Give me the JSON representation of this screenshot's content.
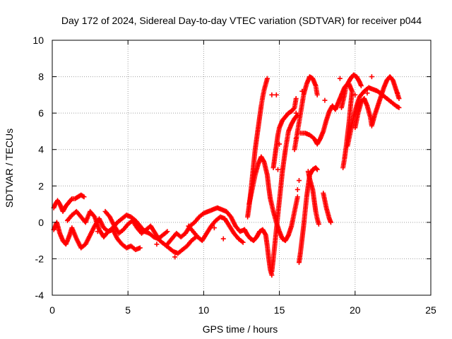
{
  "chart_data": {
    "type": "scatter",
    "title": "Day 172 of 2024, Sidereal Day-to-day VTEC variation (SDTVAR) for receiver p044",
    "xlabel": "GPS time / hours",
    "ylabel": "SDTVAR / TECUs",
    "xlim": [
      0,
      25
    ],
    "ylim": [
      -4,
      10
    ],
    "xticks": [
      "0",
      "5",
      "10",
      "15",
      "20",
      "25"
    ],
    "yticks": [
      "-4",
      "-2",
      "0",
      "2",
      "4",
      "6",
      "8",
      "10"
    ],
    "grid": true,
    "marker": "+",
    "colors": {
      "series": "#ff0000",
      "grid": "#a0a0a0",
      "axis": "#000000"
    },
    "series": [
      {
        "name": "s1",
        "values": [
          [
            0.1,
            -0.4
          ],
          [
            0.3,
            0.0
          ],
          [
            0.5,
            -0.6
          ],
          [
            0.7,
            -1.0
          ],
          [
            0.9,
            -1.2
          ],
          [
            1.1,
            -0.8
          ],
          [
            1.3,
            -0.3
          ],
          [
            1.6,
            -0.9
          ],
          [
            1.9,
            -1.4
          ],
          [
            2.2,
            -1.2
          ],
          [
            2.5,
            -0.7
          ],
          [
            2.8,
            -0.2
          ],
          [
            3.1,
            0.2
          ],
          [
            3.4,
            -0.3
          ],
          [
            3.7,
            -0.5
          ],
          [
            4.0,
            -0.4
          ],
          [
            4.3,
            -0.9
          ],
          [
            4.6,
            -1.2
          ],
          [
            4.9,
            -1.4
          ],
          [
            5.2,
            -1.3
          ],
          [
            5.5,
            -1.5
          ],
          [
            5.8,
            -1.4
          ]
        ]
      },
      {
        "name": "s2",
        "values": [
          [
            0.1,
            0.8
          ],
          [
            0.2,
            1.0
          ],
          [
            0.35,
            1.2
          ],
          [
            0.5,
            1.0
          ],
          [
            0.7,
            0.6
          ],
          [
            0.9,
            0.9
          ],
          [
            1.1,
            1.1
          ],
          [
            1.3,
            1.3
          ],
          [
            1.5,
            1.3
          ],
          [
            1.7,
            1.4
          ],
          [
            1.9,
            1.5
          ],
          [
            2.1,
            1.4
          ]
        ]
      },
      {
        "name": "s3",
        "values": [
          [
            1.0,
            0.1
          ],
          [
            1.3,
            0.4
          ],
          [
            1.6,
            0.6
          ],
          [
            1.9,
            0.3
          ],
          [
            2.2,
            0.0
          ],
          [
            2.5,
            0.6
          ],
          [
            2.8,
            0.3
          ],
          [
            3.1,
            -0.4
          ],
          [
            3.4,
            -0.8
          ],
          [
            3.7,
            -0.5
          ],
          [
            4.0,
            -0.3
          ],
          [
            4.3,
            0.0
          ],
          [
            4.6,
            0.2
          ],
          [
            4.9,
            0.4
          ],
          [
            5.2,
            0.3
          ],
          [
            5.5,
            0.1
          ],
          [
            5.8,
            -0.2
          ],
          [
            6.1,
            -0.5
          ],
          [
            6.4,
            -0.6
          ],
          [
            6.7,
            -0.8
          ],
          [
            7.0,
            -0.9
          ],
          [
            7.3,
            -0.7
          ],
          [
            7.6,
            -0.5
          ]
        ]
      },
      {
        "name": "s4",
        "values": [
          [
            3.5,
            0.6
          ],
          [
            3.8,
            0.3
          ],
          [
            4.1,
            -0.2
          ],
          [
            4.4,
            -0.6
          ],
          [
            4.7,
            -0.4
          ],
          [
            5.0,
            -0.1
          ],
          [
            5.3,
            0.1
          ],
          [
            5.6,
            -0.3
          ],
          [
            5.9,
            -0.6
          ],
          [
            6.2,
            -0.4
          ],
          [
            6.5,
            -0.2
          ],
          [
            6.8,
            -0.6
          ],
          [
            7.1,
            -1.0
          ],
          [
            7.4,
            -1.2
          ],
          [
            7.7,
            -1.4
          ],
          [
            8.0,
            -1.6
          ],
          [
            8.3,
            -1.7
          ],
          [
            8.6,
            -1.5
          ],
          [
            8.9,
            -1.3
          ],
          [
            9.2,
            -1.0
          ],
          [
            9.5,
            -0.8
          ]
        ]
      },
      {
        "name": "s5",
        "values": [
          [
            7.6,
            -1.2
          ],
          [
            7.9,
            -0.9
          ],
          [
            8.2,
            -0.6
          ],
          [
            8.5,
            -0.8
          ],
          [
            8.8,
            -0.6
          ],
          [
            9.1,
            -0.2
          ],
          [
            9.4,
            0.0
          ],
          [
            9.7,
            0.3
          ],
          [
            10.0,
            0.5
          ],
          [
            10.3,
            0.6
          ],
          [
            10.6,
            0.7
          ],
          [
            10.9,
            0.8
          ],
          [
            11.2,
            0.7
          ],
          [
            11.5,
            0.6
          ],
          [
            11.8,
            0.3
          ],
          [
            12.1,
            -0.2
          ],
          [
            12.4,
            -0.5
          ],
          [
            12.7,
            -0.4
          ]
        ]
      },
      {
        "name": "s6",
        "values": [
          [
            9.0,
            -0.2
          ],
          [
            9.3,
            -0.5
          ],
          [
            9.6,
            -0.8
          ],
          [
            9.9,
            -1.0
          ],
          [
            10.2,
            -0.6
          ],
          [
            10.5,
            -0.2
          ],
          [
            10.8,
            0.1
          ],
          [
            11.1,
            0.3
          ],
          [
            11.4,
            0.2
          ],
          [
            11.7,
            -0.2
          ],
          [
            12.0,
            -0.6
          ],
          [
            12.3,
            -0.9
          ],
          [
            12.6,
            -1.1
          ]
        ]
      },
      {
        "name": "s7",
        "values": [
          [
            12.9,
            0.3
          ],
          [
            13.0,
            0.9
          ],
          [
            13.1,
            1.6
          ],
          [
            13.2,
            2.4
          ],
          [
            13.3,
            3.2
          ],
          [
            13.4,
            4.0
          ],
          [
            13.5,
            4.6
          ],
          [
            13.6,
            5.2
          ],
          [
            13.7,
            5.8
          ],
          [
            13.8,
            6.4
          ],
          [
            13.9,
            6.9
          ],
          [
            14.0,
            7.3
          ],
          [
            14.1,
            7.6
          ],
          [
            14.2,
            7.9
          ]
        ]
      },
      {
        "name": "s8",
        "values": [
          [
            13.0,
            1.0
          ],
          [
            13.2,
            1.8
          ],
          [
            13.4,
            2.6
          ],
          [
            13.6,
            3.2
          ],
          [
            13.8,
            3.6
          ],
          [
            14.0,
            3.3
          ],
          [
            14.2,
            2.6
          ],
          [
            14.3,
            1.9
          ],
          [
            14.4,
            1.3
          ],
          [
            14.6,
            0.6
          ],
          [
            14.8,
            0.0
          ],
          [
            15.0,
            -0.5
          ],
          [
            15.2,
            -0.9
          ],
          [
            15.4,
            -1.0
          ],
          [
            15.6,
            -0.7
          ],
          [
            15.8,
            -0.2
          ],
          [
            16.0,
            0.6
          ],
          [
            16.2,
            1.4
          ]
        ]
      },
      {
        "name": "s9",
        "values": [
          [
            14.6,
            3.0
          ],
          [
            14.7,
            3.6
          ],
          [
            14.8,
            4.2
          ],
          [
            14.9,
            4.8
          ],
          [
            15.0,
            5.2
          ],
          [
            15.2,
            5.6
          ],
          [
            15.4,
            5.8
          ],
          [
            15.6,
            6.0
          ],
          [
            15.8,
            6.1
          ],
          [
            16.0,
            6.3
          ],
          [
            16.1,
            6.8
          ]
        ]
      },
      {
        "name": "s10",
        "values": [
          [
            12.7,
            -0.4
          ],
          [
            12.9,
            -0.7
          ],
          [
            13.1,
            -0.9
          ],
          [
            13.3,
            -1.0
          ],
          [
            13.5,
            -0.8
          ],
          [
            13.7,
            -0.5
          ],
          [
            13.9,
            -0.4
          ],
          [
            14.1,
            -0.7
          ],
          [
            14.2,
            -1.3
          ],
          [
            14.3,
            -2.0
          ],
          [
            14.4,
            -2.6
          ],
          [
            14.5,
            -2.9
          ]
        ]
      },
      {
        "name": "s11",
        "values": [
          [
            14.5,
            -2.7
          ],
          [
            14.6,
            -2.0
          ],
          [
            14.7,
            -1.2
          ],
          [
            14.8,
            -0.4
          ],
          [
            14.9,
            0.4
          ],
          [
            15.0,
            1.2
          ],
          [
            15.1,
            2.0
          ],
          [
            15.2,
            2.8
          ],
          [
            15.3,
            3.4
          ],
          [
            15.4,
            4.0
          ],
          [
            15.5,
            4.5
          ],
          [
            15.6,
            5.0
          ],
          [
            15.8,
            5.4
          ],
          [
            16.0,
            5.7
          ],
          [
            16.2,
            5.9
          ]
        ]
      },
      {
        "name": "s12",
        "values": [
          [
            16.0,
            4.0
          ],
          [
            16.2,
            5.0
          ],
          [
            16.4,
            6.0
          ],
          [
            16.6,
            7.0
          ],
          [
            16.8,
            7.6
          ],
          [
            17.0,
            8.0
          ],
          [
            17.2,
            7.9
          ],
          [
            17.4,
            7.5
          ],
          [
            17.5,
            7.0
          ]
        ]
      },
      {
        "name": "s13",
        "values": [
          [
            16.3,
            -2.2
          ],
          [
            16.4,
            -1.6
          ],
          [
            16.5,
            -0.9
          ],
          [
            16.6,
            -0.2
          ],
          [
            16.7,
            0.6
          ],
          [
            16.8,
            1.4
          ],
          [
            16.9,
            2.0
          ],
          [
            17.0,
            2.6
          ],
          [
            17.2,
            2.9
          ],
          [
            17.4,
            3.0
          ],
          [
            17.5,
            2.9
          ]
        ]
      },
      {
        "name": "s14",
        "values": [
          [
            16.9,
            2.8
          ],
          [
            17.0,
            2.4
          ],
          [
            17.2,
            1.8
          ],
          [
            17.3,
            1.2
          ],
          [
            17.4,
            0.6
          ],
          [
            17.5,
            0.2
          ],
          [
            17.6,
            -0.1
          ]
        ]
      },
      {
        "name": "s15",
        "values": [
          [
            16.4,
            4.9
          ],
          [
            16.7,
            4.9
          ],
          [
            17.0,
            4.8
          ],
          [
            17.3,
            4.6
          ],
          [
            17.5,
            4.3
          ],
          [
            17.7,
            4.6
          ],
          [
            17.9,
            5.0
          ],
          [
            18.1,
            5.6
          ],
          [
            18.3,
            6.1
          ],
          [
            18.5,
            6.4
          ],
          [
            18.7,
            6.2
          ],
          [
            18.9,
            6.6
          ],
          [
            19.1,
            7.0
          ],
          [
            19.3,
            7.4
          ],
          [
            19.5,
            7.6
          ],
          [
            19.7,
            7.9
          ],
          [
            19.9,
            8.1
          ],
          [
            20.1,
            8.0
          ],
          [
            20.3,
            7.7
          ],
          [
            20.4,
            7.5
          ]
        ]
      },
      {
        "name": "s16",
        "values": [
          [
            17.9,
            1.6
          ],
          [
            18.0,
            1.2
          ],
          [
            18.1,
            0.8
          ],
          [
            18.2,
            0.5
          ],
          [
            18.3,
            0.2
          ],
          [
            18.4,
            0.0
          ]
        ]
      },
      {
        "name": "s17",
        "values": [
          [
            19.1,
            6.3
          ],
          [
            19.3,
            7.0
          ],
          [
            19.4,
            7.5
          ],
          [
            19.6,
            7.6
          ],
          [
            19.8,
            7.2
          ],
          [
            19.7,
            6.4
          ],
          [
            19.6,
            5.5
          ],
          [
            19.5,
            4.8
          ],
          [
            19.4,
            4.1
          ],
          [
            19.3,
            3.5
          ],
          [
            19.2,
            3.0
          ]
        ]
      },
      {
        "name": "s18",
        "values": [
          [
            19.5,
            4.2
          ],
          [
            19.7,
            5.0
          ],
          [
            19.9,
            5.8
          ],
          [
            20.1,
            6.4
          ],
          [
            20.3,
            6.9
          ],
          [
            20.6,
            7.2
          ],
          [
            20.9,
            7.4
          ],
          [
            21.2,
            7.3
          ],
          [
            21.5,
            7.2
          ],
          [
            21.8,
            7.0
          ],
          [
            22.1,
            6.8
          ],
          [
            22.4,
            6.6
          ],
          [
            22.7,
            6.4
          ],
          [
            22.9,
            6.3
          ]
        ]
      },
      {
        "name": "s19",
        "values": [
          [
            20.0,
            5.2
          ],
          [
            20.2,
            6.0
          ],
          [
            20.4,
            6.6
          ],
          [
            20.6,
            6.8
          ],
          [
            20.8,
            6.4
          ],
          [
            21.0,
            5.8
          ],
          [
            21.1,
            5.3
          ],
          [
            21.3,
            5.9
          ],
          [
            21.5,
            6.4
          ],
          [
            21.7,
            6.9
          ],
          [
            21.9,
            7.4
          ],
          [
            22.1,
            7.8
          ],
          [
            22.3,
            8.0
          ],
          [
            22.5,
            7.8
          ],
          [
            22.7,
            7.3
          ],
          [
            22.9,
            6.8
          ]
        ]
      },
      {
        "name": "s20",
        "values": [
          [
            14.8,
            7.0
          ],
          [
            16.1,
            6.0
          ],
          [
            16.1,
            4.6
          ],
          [
            15.0,
            4.3
          ],
          [
            16.3,
            2.3
          ],
          [
            16.2,
            1.8
          ],
          [
            16.5,
            7.2
          ],
          [
            18.0,
            6.7
          ],
          [
            20.0,
            7.0
          ],
          [
            21.1,
            8.0
          ],
          [
            22.8,
            7.1
          ],
          [
            20.8,
            7.1
          ],
          [
            19.0,
            7.9
          ],
          [
            14.5,
            7.0
          ],
          [
            14.9,
            2.9
          ],
          [
            11.3,
            -0.9
          ],
          [
            10.7,
            -0.3
          ],
          [
            8.1,
            -1.9
          ],
          [
            6.9,
            -1.2
          ],
          [
            3.0,
            -0.5
          ]
        ]
      }
    ]
  }
}
